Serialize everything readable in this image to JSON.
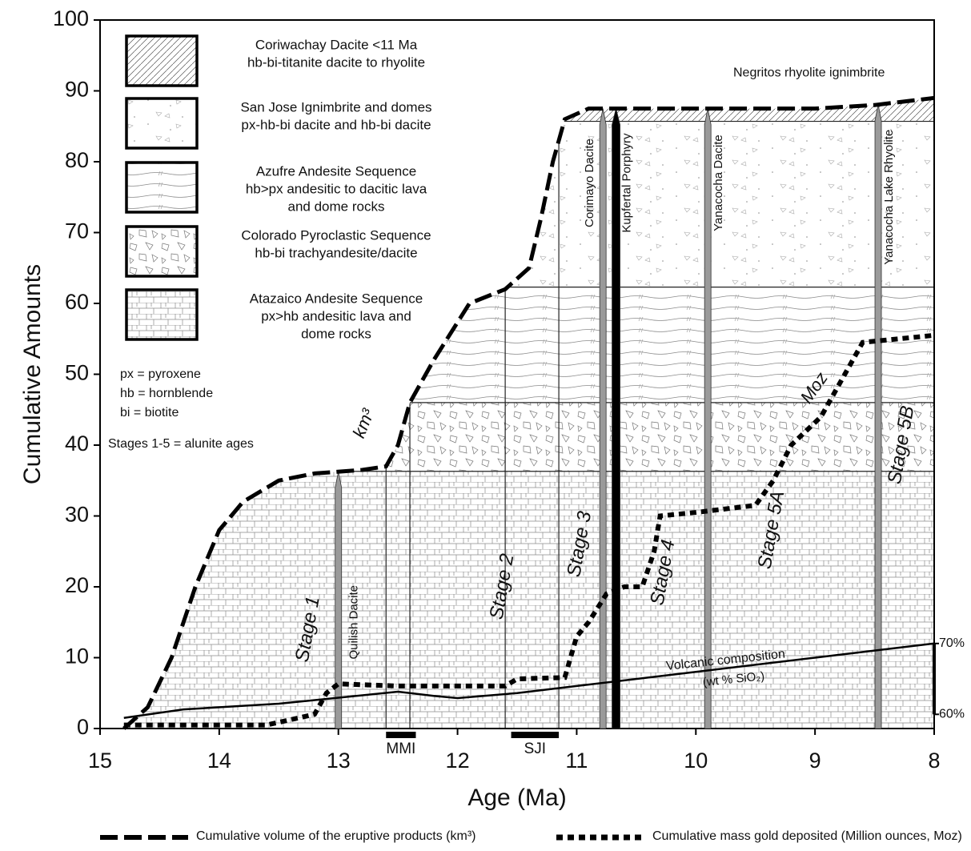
{
  "chart_data": {
    "type": "line",
    "x_label": "Age (Ma)",
    "y_label": "Cumulative Amounts",
    "xlim": [
      15,
      8
    ],
    "xticks": [
      15,
      14,
      13,
      12,
      11,
      10,
      9,
      8
    ],
    "ylim": [
      0,
      100
    ],
    "yticks": [
      0,
      10,
      20,
      30,
      40,
      50,
      60,
      70,
      80,
      90,
      100
    ],
    "y2lim": [
      58,
      158
    ],
    "y2ticks": [
      {
        "value": 60,
        "label": "60%"
      },
      {
        "value": 70,
        "label": "70%"
      }
    ],
    "legend": "bottom",
    "series": [
      {
        "name": "Cumulative volume of the eruptive products (km³)",
        "curve_label": "km³",
        "style": "dashed",
        "color": "#000000",
        "in_legend": true,
        "x": [
          14.8,
          14.6,
          14.4,
          14.2,
          14.0,
          13.8,
          13.5,
          13.2,
          12.8,
          12.6,
          12.5,
          12.4,
          12.2,
          11.9,
          11.6,
          11.4,
          11.3,
          11.2,
          11.1,
          10.9,
          10.0,
          9.0,
          8.5,
          8.0
        ],
        "values": [
          0,
          3,
          10,
          20,
          28,
          32,
          35,
          36,
          36.5,
          37,
          40,
          46,
          52,
          60,
          62,
          65,
          72,
          80,
          86,
          87.5,
          87.5,
          87.5,
          88,
          89
        ]
      },
      {
        "name": "Cumulative mass gold deposited (Million ounces, Moz)",
        "curve_label": "Moz",
        "style": "dotted",
        "color": "#000000",
        "in_legend": true,
        "x": [
          14.8,
          13.6,
          13.2,
          13.1,
          13.0,
          12.5,
          11.6,
          11.5,
          11.1,
          11.0,
          10.9,
          10.75,
          10.6,
          10.45,
          10.35,
          10.3,
          10.0,
          9.5,
          9.35,
          9.2,
          8.95,
          8.75,
          8.6,
          8.3,
          8.0
        ],
        "values": [
          0.5,
          0.5,
          2,
          5,
          6.3,
          6,
          6,
          7,
          7.2,
          13,
          15,
          19,
          20,
          20,
          25,
          30,
          30.5,
          31.5,
          35,
          40,
          44,
          50,
          54.5,
          55,
          55.5
        ]
      },
      {
        "name": "Volcanic composition",
        "curve_label": "(wt % SiO₂)",
        "style": "solid",
        "color": "#000000",
        "in_legend": false,
        "axis": "y2",
        "x": [
          14.8,
          14.3,
          13.5,
          12.5,
          12.2,
          12.0,
          11.5,
          11.0,
          10.0,
          9.0,
          8.0
        ],
        "values": [
          59.5,
          60.7,
          61.5,
          63.2,
          62.6,
          62.3,
          63,
          64,
          66,
          68,
          70
        ]
      }
    ],
    "units": [
      {
        "lines": [
          "Coriwachay Dacite <11 Ma",
          "hb-bi-titanite dacite to rhyolite"
        ],
        "pattern": "diagonal"
      },
      {
        "lines": [
          "San Jose Ignimbrite and domes",
          "px-hb-bi dacite and hb-bi dacite"
        ],
        "pattern": "dots"
      },
      {
        "lines": [
          "Azufre Andesite Sequence",
          "hb>px andesitic to dacitic lava",
          "and dome rocks"
        ],
        "pattern": "wavy"
      },
      {
        "lines": [
          "Colorado Pyroclastic Sequence",
          "hb-bi trachyandesite/dacite"
        ],
        "pattern": "shards"
      },
      {
        "lines": [
          "Atazaico Andesite Sequence",
          "px>hb andesitic lava and",
          "dome rocks"
        ],
        "pattern": "brick"
      }
    ],
    "notes": [
      "px = pyroxene",
      "hb = hornblende",
      "bi = biotite",
      "Stages 1-5 = alunite ages"
    ],
    "top_note": "Negritos rhyolite ignimbrite",
    "events": [
      {
        "label": "Quilish Dacite",
        "age": 13,
        "color": "#9a9a9a"
      },
      {
        "label": "Corimayo Dacite",
        "age": 10.78,
        "color": "#9a9a9a"
      },
      {
        "label": "Kupfertal Porphyry",
        "age": 10.67,
        "color": "#000000"
      },
      {
        "label": "Yanacocha Dacite",
        "age": 9.9,
        "color": "#9a9a9a"
      },
      {
        "label": "Yanacocha Lake Rhyolite",
        "age": 8.47,
        "color": "#9a9a9a"
      }
    ],
    "stages": [
      "Stage 1",
      "Stage 2",
      "Stage 3",
      "Stage 4",
      "Stage 5A",
      "Stage 5B"
    ],
    "periods": [
      {
        "label": "MMI",
        "start": 12.6,
        "end": 12.35
      },
      {
        "label": "SJI",
        "start": 11.55,
        "end": 11.15
      }
    ]
  }
}
